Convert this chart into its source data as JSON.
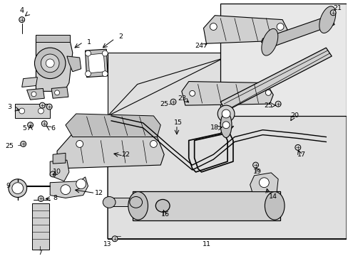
{
  "bg_color": "#ffffff",
  "line_color": "#000000",
  "label_color": "#000000",
  "shaded_gray": "#e0e0e0",
  "dark_gray": "#c0c0c0",
  "med_gray": "#d0d0d0",
  "part_bg": "#d8d8d8",
  "box_shade": "#e8e8e8",
  "lw_main": 0.9,
  "lw_thin": 0.6,
  "lw_thick": 1.5,
  "fig_w": 4.89,
  "fig_h": 3.6,
  "dpi": 100
}
